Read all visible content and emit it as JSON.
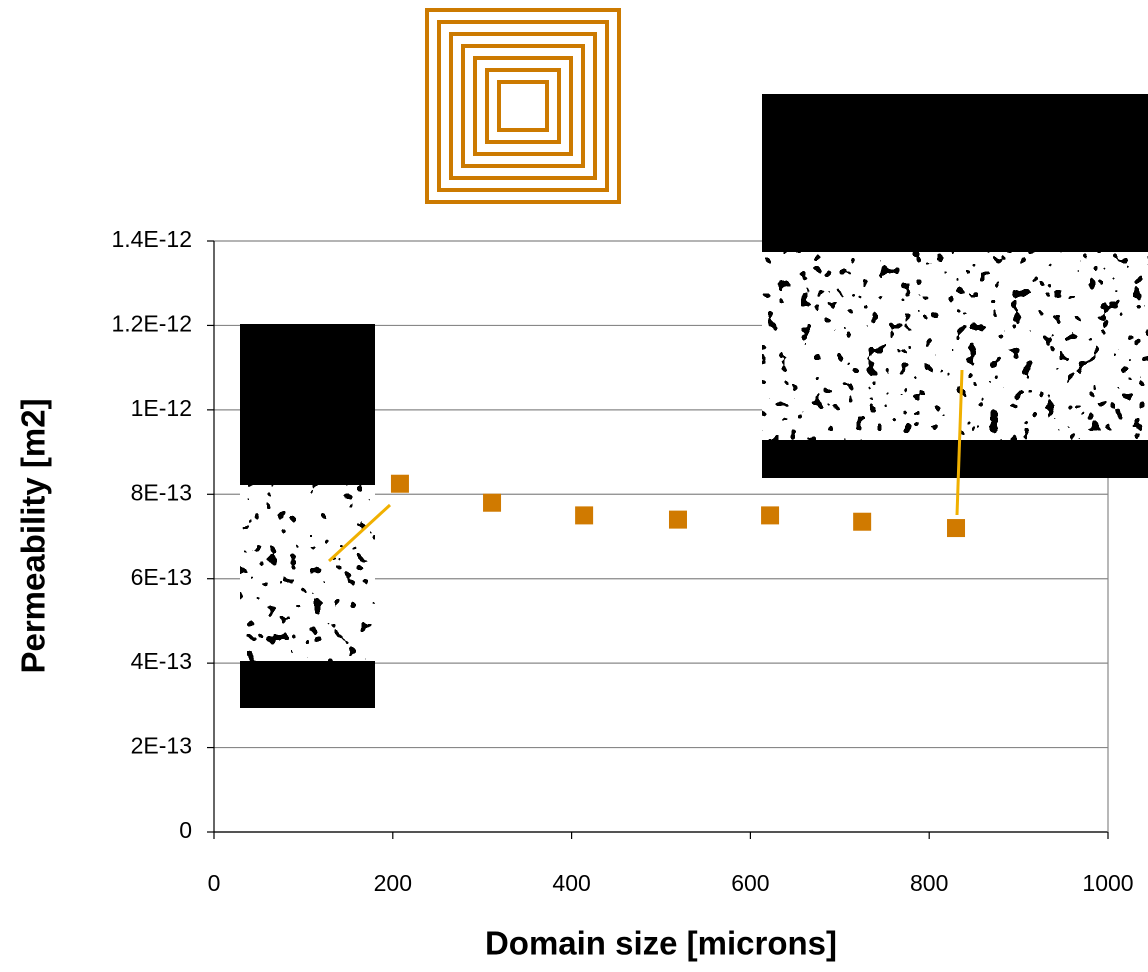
{
  "chart_data": {
    "type": "scatter",
    "x_label": "Domain size [microns]",
    "y_label": "Permeability [m2]",
    "x": [
      208,
      311,
      414,
      519,
      622,
      725,
      830
    ],
    "values": [
      8.25e-13,
      7.8e-13,
      7.5e-13,
      7.4e-13,
      7.5e-13,
      7.35e-13,
      7.2e-13
    ],
    "color": "#d07a00",
    "xlim": [
      0,
      1000
    ],
    "xticks": [
      0,
      200,
      400,
      600,
      800,
      1000
    ],
    "ylim": [
      0,
      1.4e-12
    ],
    "yticks": [
      0,
      {
        "value": 2e-13,
        "label": "2E-13"
      },
      {
        "value": 4e-13,
        "label": "4E-13"
      },
      {
        "value": 6e-13,
        "label": "6E-13"
      },
      {
        "value": 8e-13,
        "label": "8E-13"
      },
      {
        "value": 1e-12,
        "label": "1E-12"
      },
      {
        "value": 1.2e-12,
        "label": "1.2E-12"
      },
      {
        "value": 1.4e-12,
        "label": "1.4E-12"
      }
    ],
    "grid": true
  }
}
